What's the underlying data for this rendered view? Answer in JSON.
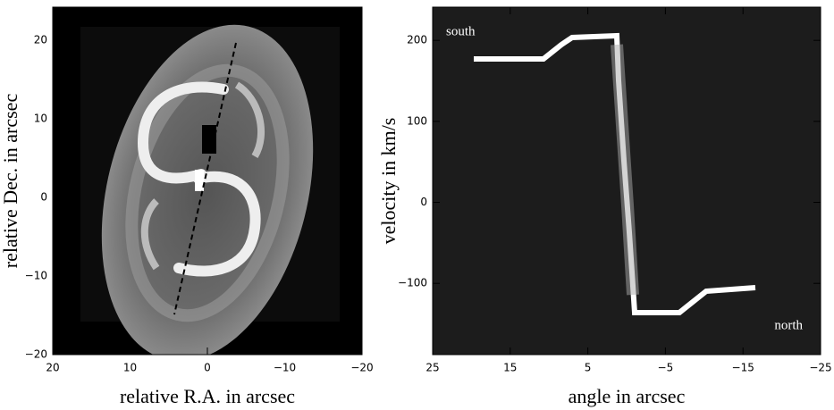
{
  "chart_data": [
    {
      "type": "image",
      "xlabel": "relative R.A. in arcsec",
      "ylabel": "relative Dec. in arcsec",
      "xlim": [
        20,
        -20
      ],
      "ylim": [
        -20,
        24.2
      ],
      "xticks": [
        20,
        10,
        0,
        {
          "value": -10,
          "label": "−10"
        },
        {
          "value": -20,
          "label": "−20"
        }
      ],
      "yticks": [
        {
          "value": -20,
          "label": "−20"
        },
        {
          "value": -10,
          "label": "−10"
        },
        0,
        10,
        20
      ]
    },
    {
      "type": "image",
      "xlabel": "angle in arcsec",
      "ylabel": "velocity in km/s",
      "xlim": [
        25,
        -25
      ],
      "ylim": [
        -188,
        241
      ],
      "xticks": [
        25,
        15,
        5,
        {
          "value": -5,
          "label": "−5"
        },
        {
          "value": -15,
          "label": "−15"
        },
        {
          "value": -25,
          "label": "−25"
        }
      ],
      "yticks": [
        {
          "value": -100,
          "label": "−100"
        },
        0,
        100,
        200
      ],
      "annotations": [
        "south",
        "north"
      ]
    }
  ]
}
